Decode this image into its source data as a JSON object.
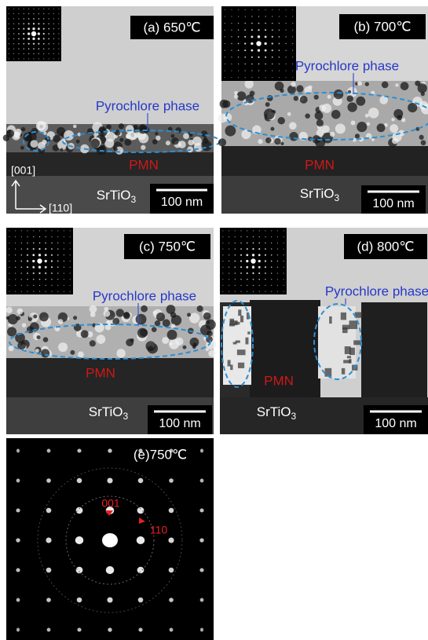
{
  "panels": [
    {
      "label": "(a) 650℃",
      "phase": "Pyrochlore phase",
      "film": "PMN",
      "substrate": "SrTiO",
      "substrate_sub": "3",
      "scale_bar": "100 nm",
      "axis_up": "[001]",
      "axis_right": "[110]"
    },
    {
      "label": "(b) 700℃",
      "phase": "Pyrochlore phase",
      "film": "PMN",
      "substrate": "SrTiO",
      "substrate_sub": "3",
      "scale_bar": "100 nm"
    },
    {
      "label": "(c) 750℃",
      "phase": "Pyrochlore phase",
      "film": "PMN",
      "substrate": "SrTiO",
      "substrate_sub": "3",
      "scale_bar": "100 nm"
    },
    {
      "label": "(d) 800℃",
      "phase": "Pyrochlore phase",
      "film": "PMN",
      "substrate": "SrTiO",
      "substrate_sub": "3",
      "scale_bar": "100 nm"
    },
    {
      "label": "(e)750℃",
      "spots": [
        "001",
        "110"
      ]
    }
  ]
}
